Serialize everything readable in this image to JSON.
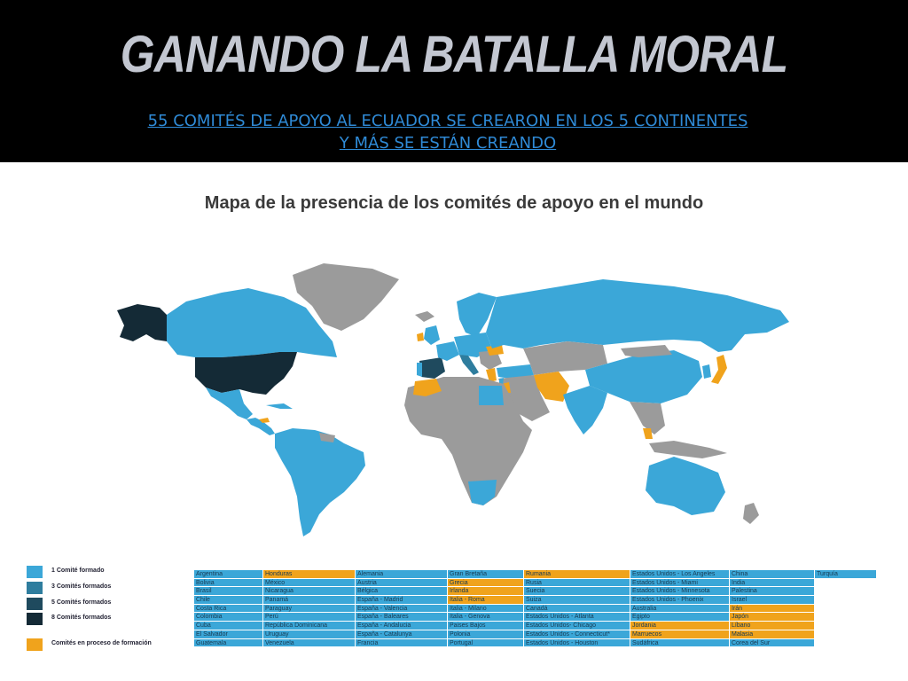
{
  "slide": {
    "title": "GANANDO LA BATALLA MORAL",
    "subtitle_line1": "55 COMITÉS DE APOYO AL ECUADOR SE CREARON EN LOS 5 CONTINENTES",
    "subtitle_line2": "Y MÁS SE ESTÁN CREANDO",
    "map_title": "Mapa de la presencia de los comités de apoyo en el mundo"
  },
  "colors": {
    "one_committee": "#3ba7d8",
    "three_committees": "#2e7d9e",
    "five_committees": "#1f4a5e",
    "eight_committees": "#142a36",
    "in_formation": "#f0a31c",
    "no_committee": "#9b9b9b"
  },
  "legend": {
    "one": "1 Comité formado",
    "three": "3 Comités formados",
    "five": "5 Comités formados",
    "eight": "8 Comités formados",
    "forming": "Comités en proceso de formación"
  },
  "table": {
    "rows": [
      [
        {
          "t": "Argentina",
          "s": "b"
        },
        {
          "t": "Honduras",
          "s": "o"
        },
        {
          "t": "Alemania",
          "s": "b"
        },
        {
          "t": "Gran Bretaña",
          "s": "b"
        },
        {
          "t": "Rumania",
          "s": "o"
        },
        {
          "t": "Estados Unidos - Los Angeles",
          "s": "b"
        },
        {
          "t": "China",
          "s": "b"
        },
        {
          "t": "Turquía",
          "s": "b"
        }
      ],
      [
        {
          "t": "Bolivia",
          "s": "b"
        },
        {
          "t": "México",
          "s": "b"
        },
        {
          "t": "Austria",
          "s": "b"
        },
        {
          "t": "Grecia",
          "s": "o"
        },
        {
          "t": "Rusia",
          "s": "b"
        },
        {
          "t": "Estados Unidos - Miami",
          "s": "b"
        },
        {
          "t": "India",
          "s": "b"
        },
        {
          "t": "",
          "s": "w"
        }
      ],
      [
        {
          "t": "Brasil",
          "s": "b"
        },
        {
          "t": "Nicaragua",
          "s": "b"
        },
        {
          "t": "Bélgica",
          "s": "b"
        },
        {
          "t": "Irlanda",
          "s": "o"
        },
        {
          "t": "Suecia",
          "s": "b"
        },
        {
          "t": "Estados Unidos - Minnesota",
          "s": "b"
        },
        {
          "t": "Palestina",
          "s": "b"
        },
        {
          "t": "",
          "s": "w"
        }
      ],
      [
        {
          "t": "Chile",
          "s": "b"
        },
        {
          "t": "Panamá",
          "s": "b"
        },
        {
          "t": "España - Madrid",
          "s": "b"
        },
        {
          "t": "Italia - Roma",
          "s": "o"
        },
        {
          "t": "Suiza",
          "s": "b"
        },
        {
          "t": "Estados Unidos - Phoenix",
          "s": "b"
        },
        {
          "t": "Israel",
          "s": "b"
        },
        {
          "t": "",
          "s": "w"
        }
      ],
      [
        {
          "t": "Costa Rica",
          "s": "b"
        },
        {
          "t": "Paraguay",
          "s": "b"
        },
        {
          "t": "España - Valencia",
          "s": "b"
        },
        {
          "t": "Italia - Milano",
          "s": "b"
        },
        {
          "t": "Canadá",
          "s": "b"
        },
        {
          "t": "Australia",
          "s": "b"
        },
        {
          "t": "Irán",
          "s": "o"
        },
        {
          "t": "",
          "s": "w"
        }
      ],
      [
        {
          "t": "Colombia",
          "s": "b"
        },
        {
          "t": "Perú",
          "s": "b"
        },
        {
          "t": "España - Baleares",
          "s": "b"
        },
        {
          "t": "Italia - Genova",
          "s": "b"
        },
        {
          "t": "Estados Unidos - Atlanta",
          "s": "b"
        },
        {
          "t": "Egipto",
          "s": "b"
        },
        {
          "t": "Japón",
          "s": "o"
        },
        {
          "t": "",
          "s": "w"
        }
      ],
      [
        {
          "t": "Cuba",
          "s": "b"
        },
        {
          "t": "República Dominicana",
          "s": "b"
        },
        {
          "t": "España - Andalucia",
          "s": "b"
        },
        {
          "t": "Paises Bajos",
          "s": "b"
        },
        {
          "t": "Estados Unidos- Chicago",
          "s": "b"
        },
        {
          "t": "Jordania",
          "s": "o"
        },
        {
          "t": "Líbano",
          "s": "o"
        },
        {
          "t": "",
          "s": "w"
        }
      ],
      [
        {
          "t": "El Salvador",
          "s": "b"
        },
        {
          "t": "Uruguay",
          "s": "b"
        },
        {
          "t": "España - Catalunya",
          "s": "b"
        },
        {
          "t": "Polonia",
          "s": "b"
        },
        {
          "t": "Estados Unidos - Connecticut*",
          "s": "b"
        },
        {
          "t": "Marruecos",
          "s": "o"
        },
        {
          "t": "Malasia",
          "s": "o"
        },
        {
          "t": "",
          "s": "w"
        }
      ],
      [
        {
          "t": "Guatemala",
          "s": "b"
        },
        {
          "t": "Venezuela",
          "s": "b"
        },
        {
          "t": "Francia",
          "s": "b"
        },
        {
          "t": "Portugal",
          "s": "b"
        },
        {
          "t": "Estados Unidos - Houston",
          "s": "b"
        },
        {
          "t": "Sudáfrica",
          "s": "b"
        },
        {
          "t": "Corea del Sur",
          "s": "b"
        },
        {
          "t": "",
          "s": "w"
        }
      ]
    ]
  }
}
